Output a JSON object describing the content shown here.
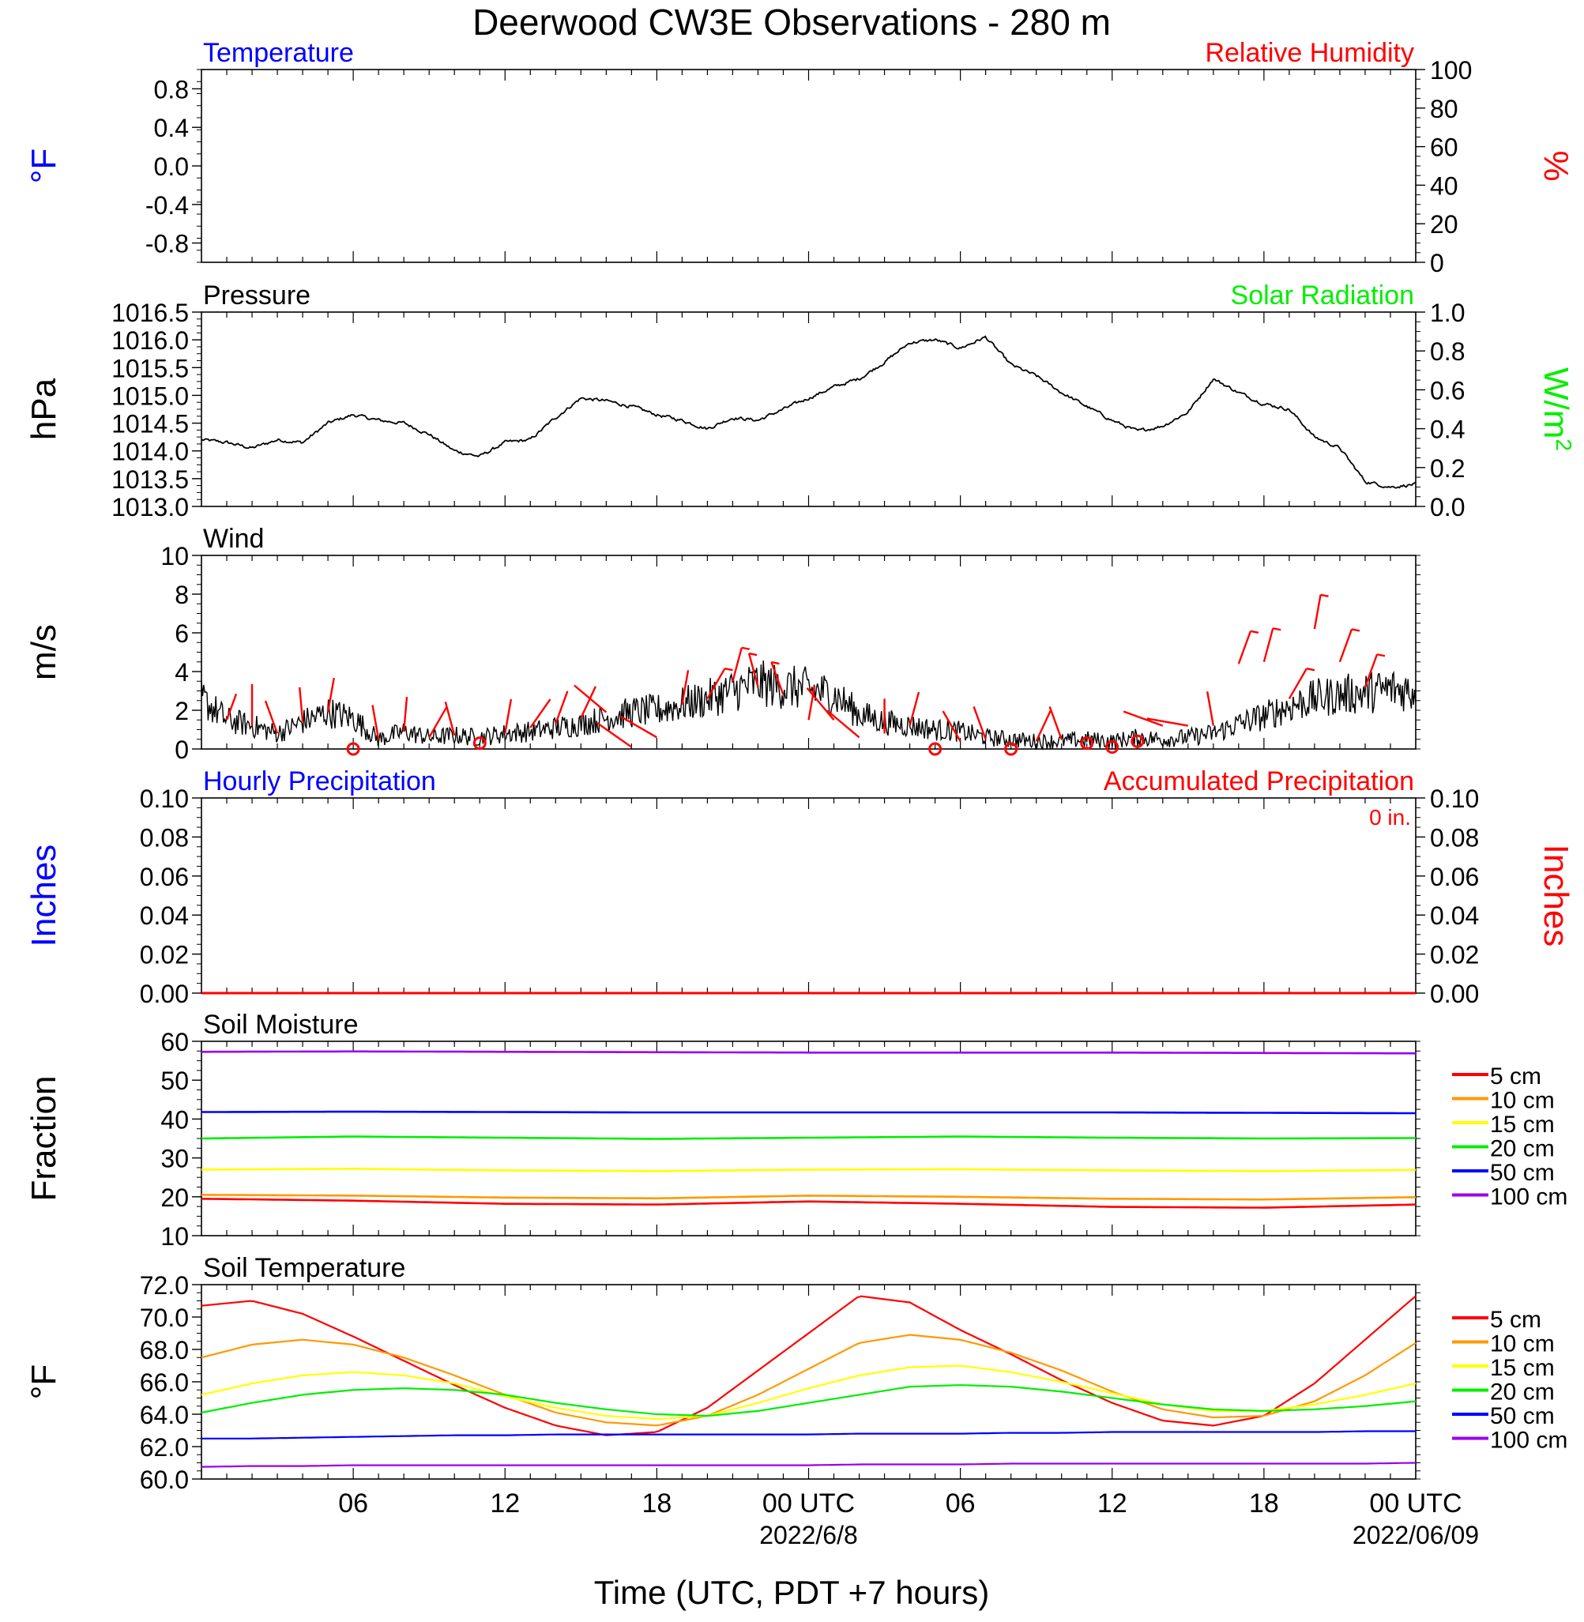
{
  "title": "Deerwood CW3E Observations - 280 m",
  "x_axis": {
    "label": "Time (UTC, PDT +7 hours)",
    "ticks": [
      "06",
      "12",
      "18",
      "00 UTC",
      "06",
      "12",
      "18",
      "00 UTC"
    ],
    "date_labels": [
      "2022/6/8",
      "2022/06/09"
    ]
  },
  "colors": {
    "temperature": "#0000ff",
    "humidity": "#ff0000",
    "solar": "#00ee00",
    "wind_barb": "#ff0000",
    "soil_5cm": "#ff0000",
    "soil_10cm": "#ff9900",
    "soil_15cm": "#ffff00",
    "soil_20cm": "#00ee00",
    "soil_50cm": "#0000ff",
    "soil_100cm": "#9900ee"
  },
  "chart_data": [
    {
      "type": "line",
      "panel": "temperature-humidity",
      "title_left": "Temperature",
      "title_right": "Relative Humidity",
      "ylabel_left": "°F",
      "ylabel_right": "%",
      "ylim_left": [
        -1.0,
        1.0
      ],
      "yticks_left": [
        "0.8",
        "0.4",
        "0.0",
        "-0.4",
        "-0.8"
      ],
      "ylim_right": [
        0,
        100
      ],
      "yticks_right": [
        "100",
        "80",
        "60",
        "40",
        "20",
        "0"
      ],
      "series": []
    },
    {
      "type": "line",
      "panel": "pressure-solar",
      "title_left": "Pressure",
      "title_right": "Solar Radiation",
      "ylabel_left": "hPa",
      "ylabel_right": "W/m",
      "ylabel_right_sup": "2",
      "ylim_left": [
        1013.0,
        1016.5
      ],
      "yticks_left": [
        "1016.5",
        "1016.0",
        "1015.5",
        "1015.0",
        "1014.5",
        "1014.0",
        "1013.5",
        "1013.0"
      ],
      "ylim_right": [
        0.0,
        1.0
      ],
      "yticks_right": [
        "1.0",
        "0.8",
        "0.6",
        "0.4",
        "0.2",
        "0.0"
      ],
      "x_hours": [
        0,
        1,
        2,
        3,
        4,
        5,
        6,
        7,
        8,
        9,
        10,
        11,
        12,
        13,
        14,
        15,
        16,
        17,
        18,
        19,
        20,
        21,
        22,
        23,
        24,
        25,
        26,
        27,
        28,
        29,
        30,
        31,
        32,
        33,
        34,
        35,
        36,
        37,
        38,
        39,
        40,
        41,
        42,
        43,
        44,
        45,
        46,
        47,
        48
      ],
      "pressure_hpa": [
        1014.2,
        1014.15,
        1014.05,
        1014.2,
        1014.15,
        1014.5,
        1014.65,
        1014.55,
        1014.5,
        1014.3,
        1014.0,
        1013.9,
        1014.15,
        1014.2,
        1014.6,
        1014.95,
        1014.9,
        1014.8,
        1014.65,
        1014.55,
        1014.4,
        1014.6,
        1014.55,
        1014.75,
        1014.95,
        1015.15,
        1015.3,
        1015.6,
        1015.95,
        1016.0,
        1015.85,
        1016.05,
        1015.55,
        1015.35,
        1015.05,
        1014.8,
        1014.55,
        1014.35,
        1014.45,
        1014.7,
        1015.3,
        1015.05,
        1014.85,
        1014.75,
        1014.25,
        1014.05,
        1013.45,
        1013.35,
        1013.4
      ]
    },
    {
      "type": "line",
      "panel": "wind",
      "title_left": "Wind",
      "ylabel_left": "m/s",
      "ylim_left": [
        0,
        10
      ],
      "yticks_left": [
        "10",
        "8",
        "6",
        "4",
        "2",
        "0"
      ],
      "x_hours": [
        0,
        1,
        2,
        3,
        4,
        5,
        6,
        7,
        8,
        9,
        10,
        11,
        12,
        13,
        14,
        15,
        16,
        17,
        18,
        19,
        20,
        21,
        22,
        23,
        24,
        25,
        26,
        27,
        28,
        29,
        30,
        31,
        32,
        33,
        34,
        35,
        36,
        37,
        38,
        39,
        40,
        41,
        42,
        43,
        44,
        45,
        46,
        47,
        48
      ],
      "speed_ms": [
        2.6,
        1.5,
        1.2,
        0.8,
        1.4,
        1.9,
        1.6,
        0.5,
        0.9,
        0.6,
        0.7,
        0.6,
        0.8,
        0.9,
        1.1,
        1.3,
        1.6,
        1.9,
        2.0,
        2.3,
        2.6,
        3.0,
        3.4,
        3.2,
        3.1,
        2.8,
        1.8,
        1.4,
        1.2,
        1.0,
        0.9,
        0.6,
        0.5,
        0.4,
        0.4,
        0.5,
        0.4,
        0.6,
        0.5,
        0.6,
        0.8,
        1.3,
        1.7,
        2.2,
        2.6,
        2.8,
        2.9,
        3.1,
        3.0
      ],
      "barbs": [
        {
          "hour": 1,
          "speed": 1.5,
          "len": 0.8,
          "ang": 20,
          "calm": false
        },
        {
          "hour": 2,
          "speed": 1.2,
          "len": 1.2,
          "ang": 0,
          "calm": false
        },
        {
          "hour": 3,
          "speed": 0.8,
          "len": 1.0,
          "ang": -20,
          "calm": false
        },
        {
          "hour": 4,
          "speed": 1.4,
          "len": 1.0,
          "ang": -5,
          "calm": false
        },
        {
          "hour": 5,
          "speed": 1.9,
          "len": 1.0,
          "ang": 10,
          "calm": false
        },
        {
          "hour": 6,
          "speed": 0.0,
          "len": 0,
          "ang": 0,
          "calm": true
        },
        {
          "hour": 7,
          "speed": 0.5,
          "len": 1.0,
          "ang": -10,
          "calm": false
        },
        {
          "hour": 8,
          "speed": 0.9,
          "len": 1.0,
          "ang": 5,
          "calm": false
        },
        {
          "hour": 9,
          "speed": 0.6,
          "len": 1.0,
          "ang": 30,
          "calm": false
        },
        {
          "hour": 10,
          "speed": 0.7,
          "len": 1.0,
          "ang": -15,
          "calm": false
        },
        {
          "hour": 11,
          "speed": 0.3,
          "len": 0,
          "ang": 0,
          "calm": true
        },
        {
          "hour": 12,
          "speed": 0.8,
          "len": 1.0,
          "ang": 10,
          "calm": false
        },
        {
          "hour": 13,
          "speed": 1.1,
          "len": 1.0,
          "ang": 35,
          "calm": false
        },
        {
          "hour": 14,
          "speed": 1.3,
          "len": 1.0,
          "ang": 20,
          "calm": false
        },
        {
          "hour": 15,
          "speed": 1.6,
          "len": 1.0,
          "ang": 25,
          "calm": false
        },
        {
          "hour": 16,
          "speed": 1.9,
          "len": 1.2,
          "ang": -50,
          "calm": false
        },
        {
          "hour": 17,
          "speed": 0.1,
          "len": 1.2,
          "ang": -55,
          "calm": false
        },
        {
          "hour": 18,
          "speed": 0.6,
          "len": 1.2,
          "ang": -60,
          "calm": false
        },
        {
          "hour": 19,
          "speed": 2.3,
          "len": 1.0,
          "ang": 10,
          "calm": false
        },
        {
          "hour": 20,
          "speed": 2.6,
          "len": 1.0,
          "ang": 30,
          "calm": false
        },
        {
          "hour": 21,
          "speed": 3.5,
          "len": 1.0,
          "ang": 15,
          "calm": false
        },
        {
          "hour": 22,
          "speed": 3.2,
          "len": 1.0,
          "ang": -15,
          "calm": false
        },
        {
          "hour": 23,
          "speed": 2.8,
          "len": 1.0,
          "ang": -20,
          "calm": false
        },
        {
          "hour": 24,
          "speed": 1.5,
          "len": 1.0,
          "ang": 10,
          "calm": false
        },
        {
          "hour": 25,
          "speed": 1.5,
          "len": 1.2,
          "ang": -40,
          "calm": false
        },
        {
          "hour": 26,
          "speed": 0.6,
          "len": 1.2,
          "ang": -50,
          "calm": false
        },
        {
          "hour": 27,
          "speed": 0.8,
          "len": 1.0,
          "ang": 0,
          "calm": false
        },
        {
          "hour": 28,
          "speed": 1.2,
          "len": 1.0,
          "ang": 15,
          "calm": false
        },
        {
          "hour": 29,
          "speed": 0.0,
          "len": 0,
          "ang": 0,
          "calm": true
        },
        {
          "hour": 30,
          "speed": 0.4,
          "len": 1.0,
          "ang": -30,
          "calm": false
        },
        {
          "hour": 31,
          "speed": 0.5,
          "len": 1.0,
          "ang": -20,
          "calm": false
        },
        {
          "hour": 32,
          "speed": 0.0,
          "len": 0,
          "ang": 0,
          "calm": true
        },
        {
          "hour": 33,
          "speed": 0.4,
          "len": 1.0,
          "ang": 25,
          "calm": false
        },
        {
          "hour": 34,
          "speed": 0.5,
          "len": 1.0,
          "ang": -20,
          "calm": false
        },
        {
          "hour": 35,
          "speed": 0.3,
          "len": 0,
          "ang": 0,
          "calm": true
        },
        {
          "hour": 36,
          "speed": 0.1,
          "len": 0,
          "ang": 0,
          "calm": true
        },
        {
          "hour": 37,
          "speed": 0.4,
          "len": 0,
          "ang": 0,
          "calm": true
        },
        {
          "hour": 38,
          "speed": 1.2,
          "len": 1.2,
          "ang": -70,
          "calm": false
        },
        {
          "hour": 39,
          "speed": 1.2,
          "len": 1.2,
          "ang": -80,
          "calm": false
        },
        {
          "hour": 40,
          "speed": 1.2,
          "len": 1.0,
          "ang": -10,
          "calm": false
        },
        {
          "hour": 41,
          "speed": 4.4,
          "len": 1.0,
          "ang": 20,
          "calm": false
        },
        {
          "hour": 42,
          "speed": 4.5,
          "len": 1.0,
          "ang": 15,
          "calm": false
        },
        {
          "hour": 43,
          "speed": 2.6,
          "len": 1.0,
          "ang": 30,
          "calm": false
        },
        {
          "hour": 44,
          "speed": 6.2,
          "len": 1.0,
          "ang": 10,
          "calm": false
        },
        {
          "hour": 45,
          "speed": 4.5,
          "len": 1.0,
          "ang": 20,
          "calm": false
        },
        {
          "hour": 46,
          "speed": 3.2,
          "len": 1.0,
          "ang": 20,
          "calm": false
        }
      ]
    },
    {
      "type": "line",
      "panel": "precipitation",
      "title_left": "Hourly Precipitation",
      "title_right": "Accumulated Precipitation",
      "total_label": "0 in.",
      "ylabel_left": "Inches",
      "ylabel_right": "Inches",
      "ylim_left": [
        0,
        0.1
      ],
      "yticks_left": [
        "0.10",
        "0.08",
        "0.06",
        "0.04",
        "0.02",
        "0.00"
      ],
      "ylim_right": [
        0,
        0.1
      ],
      "yticks_right": [
        "0.10",
        "0.08",
        "0.06",
        "0.04",
        "0.02",
        "0.00"
      ],
      "hourly_in": 0.0,
      "accumulated_in": 0.0
    },
    {
      "type": "line",
      "panel": "soil-moisture",
      "title_left": "Soil Moisture",
      "ylabel_left": "Fraction",
      "ylim_left": [
        10,
        60
      ],
      "yticks_left": [
        "60",
        "50",
        "40",
        "30",
        "20",
        "10"
      ],
      "x_hours": [
        0,
        6,
        12,
        18,
        24,
        30,
        36,
        42,
        48
      ],
      "series": [
        {
          "name": "5 cm",
          "color_key": "soil_5cm",
          "values": [
            19.5,
            19.0,
            18.2,
            18.0,
            18.8,
            18.2,
            17.4,
            17.2,
            18.0
          ]
        },
        {
          "name": "10 cm",
          "color_key": "soil_10cm",
          "values": [
            20.5,
            20.3,
            19.8,
            19.6,
            20.3,
            20.0,
            19.5,
            19.3,
            19.9
          ]
        },
        {
          "name": "15 cm",
          "color_key": "soil_15cm",
          "values": [
            27.0,
            27.2,
            26.8,
            26.6,
            27.0,
            27.1,
            26.8,
            26.6,
            26.9
          ]
        },
        {
          "name": "20 cm",
          "color_key": "soil_20cm",
          "values": [
            35.0,
            35.5,
            35.2,
            34.9,
            35.2,
            35.5,
            35.2,
            35.0,
            35.1
          ]
        },
        {
          "name": "50 cm",
          "color_key": "soil_50cm",
          "values": [
            41.8,
            41.9,
            41.8,
            41.7,
            41.7,
            41.7,
            41.7,
            41.6,
            41.5
          ]
        },
        {
          "name": "100 cm",
          "color_key": "soil_100cm",
          "values": [
            57.3,
            57.4,
            57.3,
            57.2,
            57.1,
            57.1,
            57.1,
            57.0,
            56.9
          ]
        }
      ]
    },
    {
      "type": "line",
      "panel": "soil-temperature",
      "title_left": "Soil Temperature",
      "ylabel_left": "°F",
      "ylim_left": [
        60,
        72
      ],
      "yticks_left": [
        "72.0",
        "70.0",
        "68.0",
        "66.0",
        "64.0",
        "62.0",
        "60.0"
      ],
      "x_hours": [
        0,
        2,
        4,
        6,
        8,
        10,
        12,
        14,
        16,
        18,
        20,
        22,
        24,
        26,
        28,
        30,
        32,
        34,
        36,
        38,
        40,
        42,
        44,
        46,
        48
      ],
      "series": [
        {
          "name": "5 cm",
          "color_key": "soil_5cm",
          "values": [
            70.7,
            71.0,
            70.2,
            68.8,
            67.3,
            65.8,
            64.4,
            63.3,
            62.7,
            62.9,
            64.4,
            66.7,
            69.0,
            71.3,
            70.9,
            69.2,
            67.7,
            66.1,
            64.7,
            63.6,
            63.3,
            63.9,
            65.9,
            68.6,
            71.3
          ]
        },
        {
          "name": "10 cm",
          "color_key": "soil_10cm",
          "values": [
            67.5,
            68.3,
            68.6,
            68.3,
            67.5,
            66.4,
            65.2,
            64.1,
            63.5,
            63.3,
            63.9,
            65.2,
            66.8,
            68.4,
            68.9,
            68.6,
            67.8,
            66.7,
            65.4,
            64.3,
            63.8,
            63.9,
            64.8,
            66.4,
            68.4
          ]
        },
        {
          "name": "15 cm",
          "color_key": "soil_15cm",
          "values": [
            65.2,
            65.9,
            66.4,
            66.6,
            66.4,
            65.9,
            65.1,
            64.4,
            63.9,
            63.7,
            63.9,
            64.7,
            65.6,
            66.4,
            66.9,
            67.0,
            66.6,
            66.0,
            65.3,
            64.6,
            64.2,
            64.2,
            64.6,
            65.2,
            65.9
          ]
        },
        {
          "name": "20 cm",
          "color_key": "soil_20cm",
          "values": [
            64.1,
            64.7,
            65.2,
            65.5,
            65.6,
            65.5,
            65.2,
            64.7,
            64.3,
            64.0,
            63.9,
            64.2,
            64.7,
            65.2,
            65.7,
            65.8,
            65.7,
            65.4,
            65.0,
            64.6,
            64.3,
            64.2,
            64.3,
            64.5,
            64.8
          ]
        },
        {
          "name": "50 cm",
          "color_key": "soil_50cm",
          "values": [
            62.5,
            62.5,
            62.55,
            62.6,
            62.65,
            62.7,
            62.7,
            62.75,
            62.75,
            62.75,
            62.75,
            62.75,
            62.75,
            62.8,
            62.8,
            62.8,
            62.85,
            62.85,
            62.9,
            62.9,
            62.9,
            62.9,
            62.9,
            62.95,
            62.95
          ]
        },
        {
          "name": "100 cm",
          "color_key": "soil_100cm",
          "values": [
            60.75,
            60.8,
            60.8,
            60.85,
            60.85,
            60.85,
            60.85,
            60.85,
            60.85,
            60.85,
            60.85,
            60.85,
            60.85,
            60.9,
            60.9,
            60.9,
            60.95,
            60.95,
            60.95,
            60.95,
            60.95,
            60.95,
            60.95,
            60.95,
            61.0
          ]
        }
      ]
    }
  ]
}
